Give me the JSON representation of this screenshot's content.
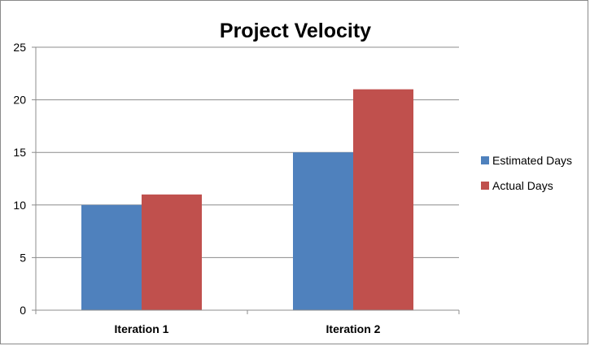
{
  "chart_data": {
    "type": "bar",
    "title": "Project Velocity",
    "categories": [
      "Iteration 1",
      "Iteration 2"
    ],
    "series": [
      {
        "name": "Estimated Days",
        "values": [
          10,
          15
        ],
        "color": "#4F81BD"
      },
      {
        "name": "Actual Days",
        "values": [
          11,
          21
        ],
        "color": "#C0504D"
      }
    ],
    "ylim": [
      0,
      25
    ],
    "yticks": [
      0,
      5,
      10,
      15,
      20,
      25
    ],
    "grid": true,
    "legend_position": "right"
  }
}
